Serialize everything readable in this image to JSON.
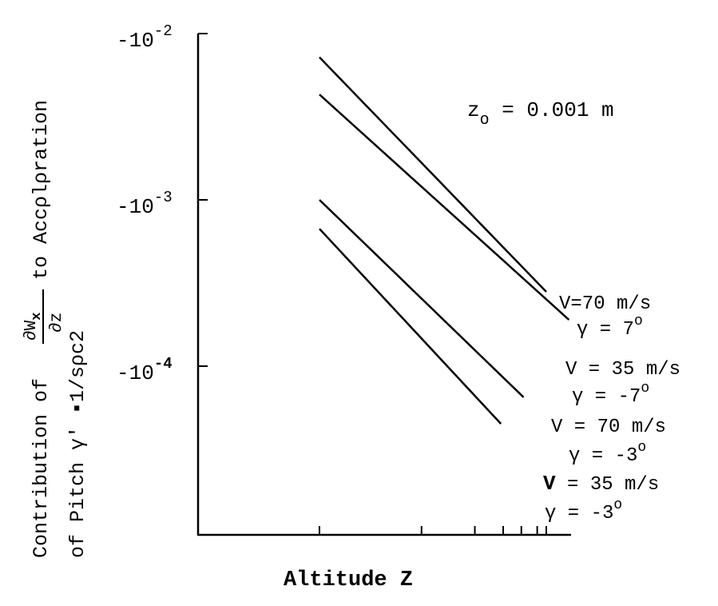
{
  "chart_data": {
    "type": "line",
    "title": "",
    "xlabel": "Altitude Z",
    "ylabel": {
      "line1_prefix": "Contribution of",
      "line1_numerator": "∂W",
      "line1_numerator_sub": "x",
      "line1_denominator": "∂z",
      "line1_suffix": "to Accρlρration",
      "line2": "of Pitch γ' ▪1/sρc2"
    },
    "y_scale": "log",
    "y_ticks": [
      {
        "base": "-10",
        "exp": "-2",
        "value": -0.01
      },
      {
        "base": "-10",
        "exp": "-3",
        "value": -0.001
      },
      {
        "base": "-10",
        "exp": "-4",
        "value": -0.0001
      }
    ],
    "annotation": {
      "main": "z",
      "sub": "o",
      "rest": " = 0.001 m"
    },
    "series": [
      {
        "name": "V=70 m/s γ = 7°",
        "label_line1": "V=70 m/s",
        "label_line2_pre": "γ = 7",
        "label_line2_sup": "o",
        "start": [
          1.0,
          -0.0072
        ],
        "end": [
          3.0,
          -0.00028
        ]
      },
      {
        "name": "V = 35 m/s γ = -7°",
        "label_line1": "V = 35 m/s",
        "label_line2_pre": "γ = -7",
        "label_line2_sup": "o",
        "start": [
          1.0,
          -0.0043
        ],
        "end": [
          3.2,
          -0.00019
        ]
      },
      {
        "name": "V = 70 m/s γ = -3°",
        "label_line1": "V = 70 m/s",
        "label_line2_pre": "γ = -3",
        "label_line2_sup": "o",
        "start": [
          1.0,
          -0.001
        ],
        "end": [
          2.8,
          -6.5e-05
        ]
      },
      {
        "name": "V = 35 m/s γ = -3°",
        "label_line1_bold": "V",
        "label_line1": " = 35 m/s",
        "label_line2_pre": "γ = -3",
        "label_line2_sup": "o",
        "start": [
          1.0,
          -0.00067
        ],
        "end": [
          2.6,
          -4.5e-05
        ]
      }
    ],
    "grid": false,
    "legend": "none"
  }
}
